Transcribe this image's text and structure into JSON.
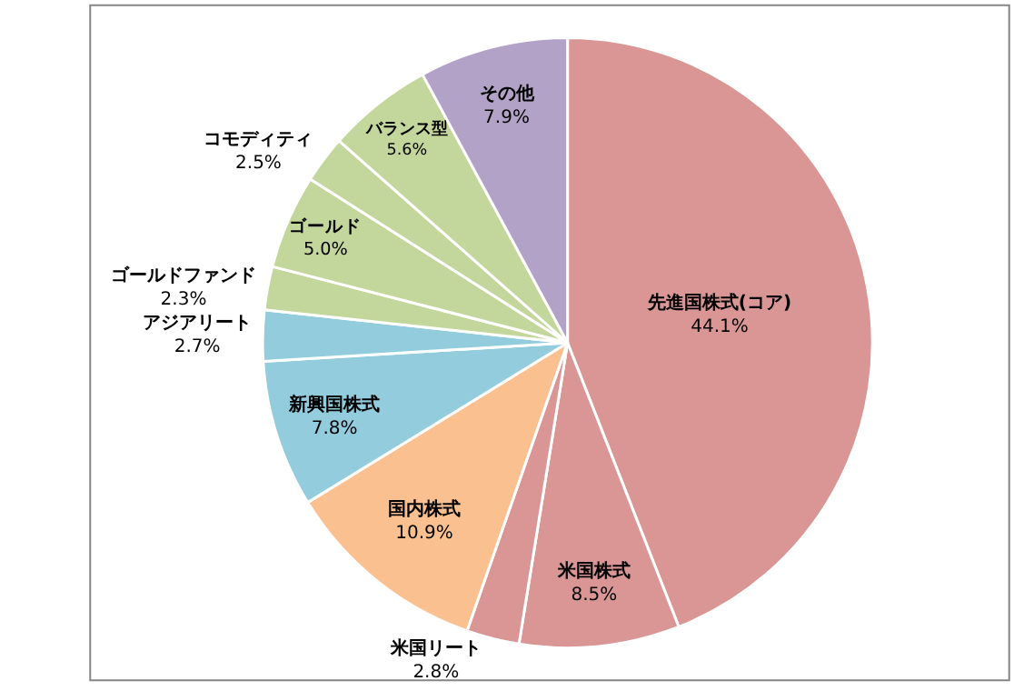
{
  "chart_data": {
    "type": "pie",
    "categories": [
      "先進国株式(コア)",
      "米国株式",
      "米国リート",
      "国内株式",
      "新興国株式",
      "アジアリート",
      "ゴールドファンド",
      "ゴールド",
      "コモディティ",
      "バランス型",
      "その他"
    ],
    "values": [
      44.1,
      8.5,
      2.8,
      10.9,
      7.8,
      2.7,
      2.3,
      5.0,
      2.5,
      5.6,
      7.9
    ],
    "value_labels": [
      "44.1%",
      "8.5%",
      "2.8%",
      "10.9%",
      "7.8%",
      "2.7%",
      "2.3%",
      "5.0%",
      "2.5%",
      "5.6%",
      "7.9%"
    ],
    "colors": [
      "#d99694",
      "#d99694",
      "#d99694",
      "#fac090",
      "#93cddd",
      "#93cddd",
      "#c3d69b",
      "#c3d69b",
      "#c3d69b",
      "#c3d69b",
      "#b3a2c7"
    ],
    "legend": false
  }
}
